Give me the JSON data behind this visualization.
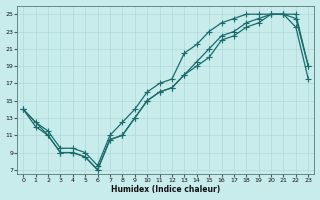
{
  "xlabel": "Humidex (Indice chaleur)",
  "bg_color": "#c8ecec",
  "grid_color": "#b0d8d8",
  "line_color": "#1a6b6b",
  "xlim": [
    -0.5,
    23.5
  ],
  "ylim": [
    6.5,
    26.0
  ],
  "xticks": [
    0,
    1,
    2,
    3,
    4,
    5,
    6,
    7,
    8,
    9,
    10,
    11,
    12,
    13,
    14,
    15,
    16,
    17,
    18,
    19,
    20,
    21,
    22,
    23
  ],
  "yticks": [
    7,
    9,
    11,
    13,
    15,
    17,
    19,
    21,
    23,
    25
  ],
  "series1_x": [
    0,
    1,
    2,
    3,
    4,
    5,
    6,
    7,
    8,
    9,
    10,
    11,
    12,
    13,
    14,
    15,
    16,
    17,
    18,
    19,
    20,
    21,
    22,
    23
  ],
  "series1_y": [
    14,
    12,
    11,
    9,
    9,
    8.5,
    7,
    10.5,
    11,
    13,
    15,
    16,
    16.5,
    18,
    19,
    20,
    22,
    22.5,
    23.5,
    24,
    25,
    25,
    24.5,
    19
  ],
  "series2_x": [
    0,
    2,
    3,
    4,
    5,
    6,
    7,
    8,
    9,
    10,
    11,
    12,
    13,
    14,
    15,
    16,
    17,
    18,
    19,
    20,
    21,
    22,
    23
  ],
  "series2_y": [
    14,
    11,
    9,
    9,
    8.5,
    7,
    10.5,
    11,
    13,
    15,
    16,
    16.5,
    18,
    19.5,
    21,
    22.5,
    23,
    24,
    24.5,
    25,
    25,
    25,
    19
  ],
  "series3_x": [
    0,
    1,
    2,
    3,
    4,
    5,
    6,
    7,
    8,
    9,
    10,
    11,
    12,
    13,
    14,
    15,
    16,
    17,
    18,
    19,
    20,
    21,
    22,
    23
  ],
  "series3_y": [
    14,
    12.5,
    11.5,
    9.5,
    9.5,
    9,
    7.5,
    11,
    12.5,
    14,
    16,
    17,
    17.5,
    20.5,
    21.5,
    23,
    24,
    24.5,
    25,
    25,
    25,
    25,
    23.5,
    17.5
  ]
}
